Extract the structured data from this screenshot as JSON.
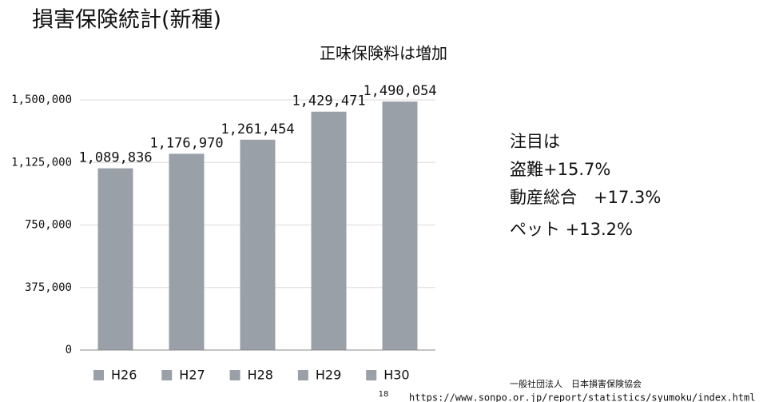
{
  "slide": {
    "title": "損害保険統計(新種)",
    "notes": [
      "注目は",
      "盗難+15.7%",
      "動産総合　+17.3%",
      "ペット +13.2%"
    ],
    "source": "一般社団法人　日本損害保険協会",
    "page_number": "18",
    "url": "https://www.sonpo.or.jp/report/statistics/syumoku/index.html"
  },
  "chart_data": {
    "type": "bar",
    "title": "正味保険料は増加",
    "categories": [
      "H26",
      "H27",
      "H28",
      "H29",
      "H30"
    ],
    "values": [
      1089836,
      1176970,
      1261454,
      1429471,
      1490054
    ],
    "value_labels": [
      "1,089,836",
      "1,176,970",
      "1,261,454",
      "1,429,471",
      "1,490,054"
    ],
    "color": "#9aa0a8",
    "ylim": [
      0,
      1500000
    ],
    "yticks": [
      0,
      {
        "value": 375000,
        "label": "375,000"
      },
      {
        "value": 750000,
        "label": "750,000"
      },
      {
        "value": 1125000,
        "label": "1,125,000"
      },
      {
        "value": 1500000,
        "label": "1,500,000"
      }
    ],
    "grid": true,
    "legend": "bottom"
  }
}
